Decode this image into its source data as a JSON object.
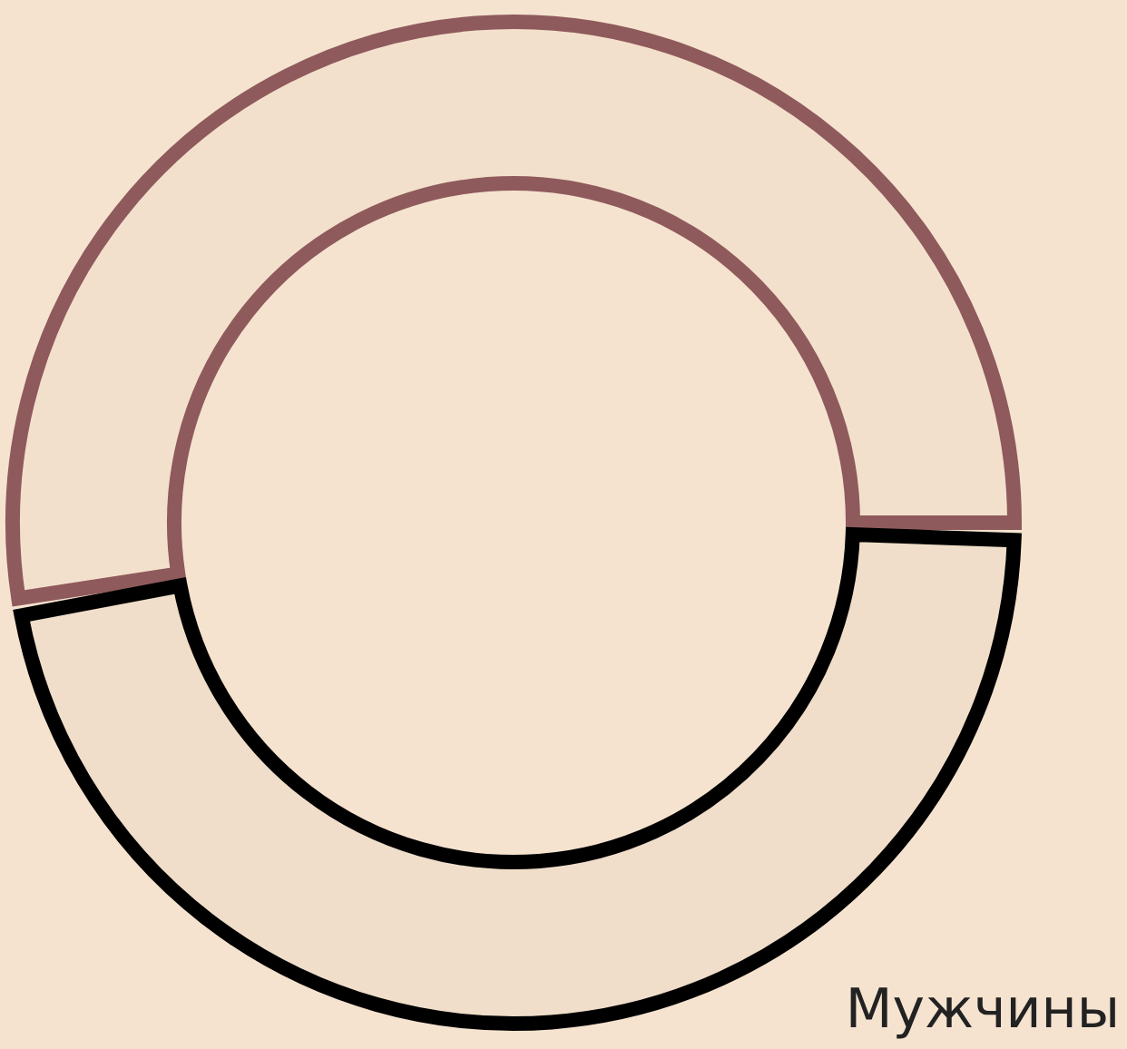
{
  "chart_data": {
    "type": "donut",
    "categories": [
      null,
      "Мужчины"
    ],
    "values": [
      53,
      47
    ],
    "colors": [
      "#8f5a5c",
      "#000000"
    ]
  }
}
